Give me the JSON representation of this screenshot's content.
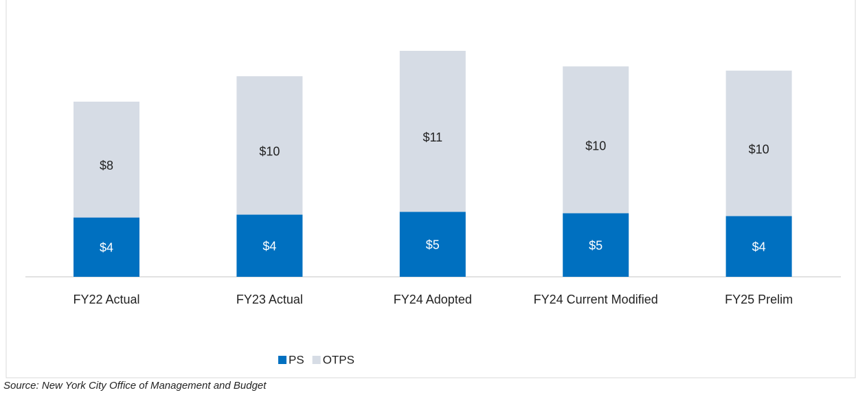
{
  "chart_data": {
    "type": "stacked-bar",
    "categories": [
      "FY22 Actual",
      "FY23 Actual",
      "FY24 Adopted",
      "FY24 Current Modified",
      "FY25 Prelim"
    ],
    "series": [
      {
        "name": "PS",
        "color": "#0070c0",
        "values": [
          4.2,
          4.4,
          4.6,
          4.5,
          4.3
        ],
        "value_labels": [
          "$4",
          "$4",
          "$5",
          "$5",
          "$4"
        ]
      },
      {
        "name": "OTPS",
        "color": "#d6dce5",
        "values": [
          8.2,
          9.8,
          11.4,
          10.4,
          10.3
        ],
        "value_labels": [
          "$8",
          "$10",
          "$11",
          "$10",
          "$10"
        ]
      }
    ],
    "source": "Source: New York City Office of Management and Budget"
  }
}
